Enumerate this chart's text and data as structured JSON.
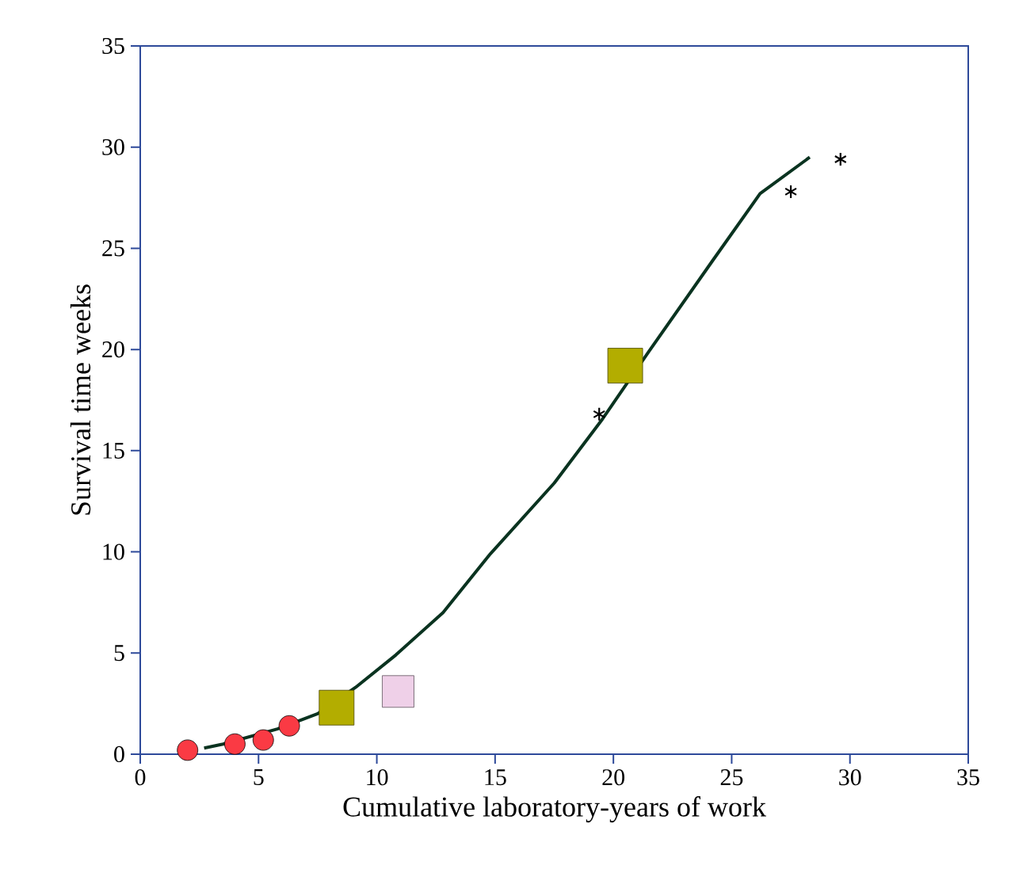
{
  "chart_data": {
    "type": "scatter",
    "xlabel": "Cumulative laboratory-years of work",
    "ylabel": "Survival time weeks",
    "xlim": [
      0,
      35
    ],
    "ylim": [
      0,
      35
    ],
    "xticks": [
      0,
      5,
      10,
      15,
      20,
      25,
      30,
      35
    ],
    "yticks": [
      0,
      5,
      10,
      15,
      20,
      25,
      30,
      35
    ],
    "series": [
      {
        "type": "line",
        "color": "#0a3320",
        "marker": "none",
        "x": [
          2.7,
          3.5,
          5.8,
          7.5,
          9.1,
          10.8,
          12.8,
          14.8,
          17.5,
          19.5,
          21.5,
          24.2,
          26.2,
          28.3
        ],
        "values": [
          0.3,
          0.5,
          1.25,
          2.0,
          3.3,
          4.9,
          7.0,
          9.9,
          13.4,
          16.5,
          19.9,
          24.4,
          27.7,
          29.5
        ]
      },
      {
        "color": "#fa3a44",
        "marker": "circle",
        "x": [
          2.0,
          4.0,
          5.2,
          6.3
        ],
        "values": [
          0.2,
          0.5,
          0.7,
          1.4
        ]
      },
      {
        "colors": [
          "#b3ad00",
          "#efd0e8",
          "#b3ad00"
        ],
        "marker": "square",
        "x": [
          8.3,
          10.9,
          20.5
        ],
        "values": [
          2.3,
          3.1,
          19.2
        ]
      },
      {
        "color": "#000000",
        "marker": "cross",
        "x": [
          19.4
        ],
        "values": [
          16.8
        ]
      },
      {
        "color": "#000000",
        "marker": "cross",
        "x": [
          27.5
        ],
        "values": [
          27.8
        ]
      },
      {
        "color": "#000000",
        "marker": "cross",
        "x": [
          29.6
        ],
        "values": [
          29.4
        ]
      }
    ]
  }
}
